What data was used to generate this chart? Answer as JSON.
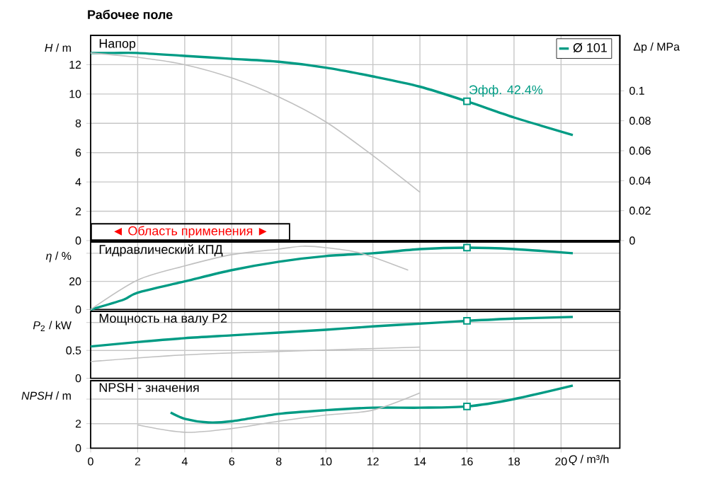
{
  "chart_data": [
    {
      "type": "line",
      "title": "Рабочее поле",
      "ylabel": "*H* / m",
      "y2label": "Δp / MPa",
      "xlim": [
        0,
        22.5
      ],
      "xticks": [
        0,
        2,
        4,
        6,
        8,
        10,
        12,
        14,
        16,
        18,
        20
      ],
      "ylim": [
        0,
        14
      ],
      "yticks": [
        0,
        2,
        4,
        6,
        8,
        10,
        12
      ],
      "y2lim": [
        0,
        0.137
      ],
      "y2ticks": [
        0,
        0.02,
        0.04,
        0.06,
        0.08,
        0.1
      ],
      "grid": true,
      "legend": "top right",
      "tick_labels": "y",
      "annotations": [
        "Напор",
        {
          "text": "Эфф.  42.4%",
          "x": 16,
          "y": 9.5
        },
        "◄ Область применения ►"
      ],
      "series": [
        {
          "name": "Ø 101",
          "color": "#009b84",
          "x": [
            0,
            1,
            2,
            4,
            6,
            8,
            10,
            12,
            14,
            16,
            18,
            20.5
          ],
          "values": [
            12.8,
            12.8,
            12.8,
            12.6,
            12.4,
            12.2,
            11.8,
            11.2,
            10.5,
            9.5,
            8.4,
            7.2
          ]
        },
        {
          "color": "#c0c0c0",
          "x": [
            0,
            2,
            4,
            6,
            8,
            10,
            12,
            14
          ],
          "values": [
            12.8,
            12.5,
            12.0,
            11.1,
            9.8,
            8.1,
            5.8,
            3.3
          ]
        },
        {
          "type": "scatter",
          "marker": "square",
          "color": "#009b84",
          "x": [
            16
          ],
          "values": [
            9.5
          ]
        }
      ]
    },
    {
      "type": "line",
      "ylabel": "*η* / %",
      "xlim": [
        0,
        22.5
      ],
      "xticks": [
        0,
        2,
        4,
        6,
        8,
        10,
        12,
        14,
        16,
        18,
        20
      ],
      "ylim": [
        0,
        48
      ],
      "yticks": [
        0,
        20,
        {
          "value": 40,
          "label": null
        }
      ],
      "grid": true,
      "tick_labels": "y",
      "annotations": [
        "Гидравлический КПД"
      ],
      "series": [
        {
          "color": "#009b84",
          "x": [
            0,
            1.4,
            2,
            4,
            6,
            8,
            10,
            12,
            14,
            16,
            18,
            20.5
          ],
          "values": [
            0,
            7,
            12,
            20,
            28,
            34,
            38,
            40,
            43,
            44,
            43,
            40
          ]
        },
        {
          "color": "#c0c0c0",
          "x": [
            0,
            2,
            4,
            6,
            8,
            9,
            10,
            11.5,
            13.5
          ],
          "values": [
            0,
            21,
            31,
            39,
            43,
            45,
            44,
            40,
            28
          ]
        },
        {
          "type": "scatter",
          "marker": "square",
          "color": "#009b84",
          "x": [
            16
          ],
          "values": [
            44
          ]
        }
      ]
    },
    {
      "type": "line",
      "ylabel": "*P*$_{2}$ / kW",
      "xlim": [
        0,
        22.5
      ],
      "xticks": [
        0,
        2,
        4,
        6,
        8,
        10,
        12,
        14,
        16,
        18,
        20
      ],
      "ylim": [
        0,
        1.2
      ],
      "yticks": [
        0,
        0.5,
        {
          "value": 1,
          "label": null
        }
      ],
      "grid": true,
      "tick_labels": "y",
      "annotations": [
        "Мощность на валу P2"
      ],
      "series": [
        {
          "color": "#009b84",
          "x": [
            0,
            2,
            4,
            6,
            8,
            10,
            12,
            14,
            16,
            18,
            20.5
          ],
          "values": [
            0.57,
            0.65,
            0.72,
            0.77,
            0.82,
            0.87,
            0.93,
            0.98,
            1.03,
            1.07,
            1.1
          ]
        },
        {
          "color": "#c0c0c0",
          "x": [
            0,
            4,
            8,
            11,
            14
          ],
          "values": [
            0.3,
            0.42,
            0.48,
            0.52,
            0.56
          ]
        },
        {
          "type": "scatter",
          "marker": "square",
          "color": "#009b84",
          "x": [
            16
          ],
          "values": [
            1.03
          ]
        }
      ]
    },
    {
      "type": "line",
      "ylabel": "*NPSH*  / m",
      "xlabel": "*Q* / m³/h",
      "xlim": [
        0,
        22.5
      ],
      "xticks": [
        0,
        2,
        4,
        6,
        8,
        10,
        12,
        14,
        16,
        18,
        20
      ],
      "ylim": [
        0,
        5.5
      ],
      "yticks": [
        0,
        2,
        {
          "value": 4,
          "label": null
        }
      ],
      "grid": true,
      "annotations": [
        "NPSH - значения"
      ],
      "series": [
        {
          "color": "#009b84",
          "x": [
            3.4,
            4,
            5,
            6,
            8,
            10,
            12,
            14,
            16,
            18,
            20.5
          ],
          "values": [
            2.9,
            2.4,
            2.1,
            2.2,
            2.8,
            3.1,
            3.3,
            3.3,
            3.4,
            4.0,
            5.1
          ]
        },
        {
          "color": "#c0c0c0",
          "x": [
            2,
            4,
            6,
            8,
            10,
            12,
            14
          ],
          "values": [
            1.9,
            1.3,
            1.6,
            2.2,
            2.7,
            3.1,
            4.5
          ]
        },
        {
          "type": "scatter",
          "marker": "square",
          "color": "#009b84",
          "x": [
            16
          ],
          "values": [
            3.4
          ]
        }
      ]
    }
  ]
}
